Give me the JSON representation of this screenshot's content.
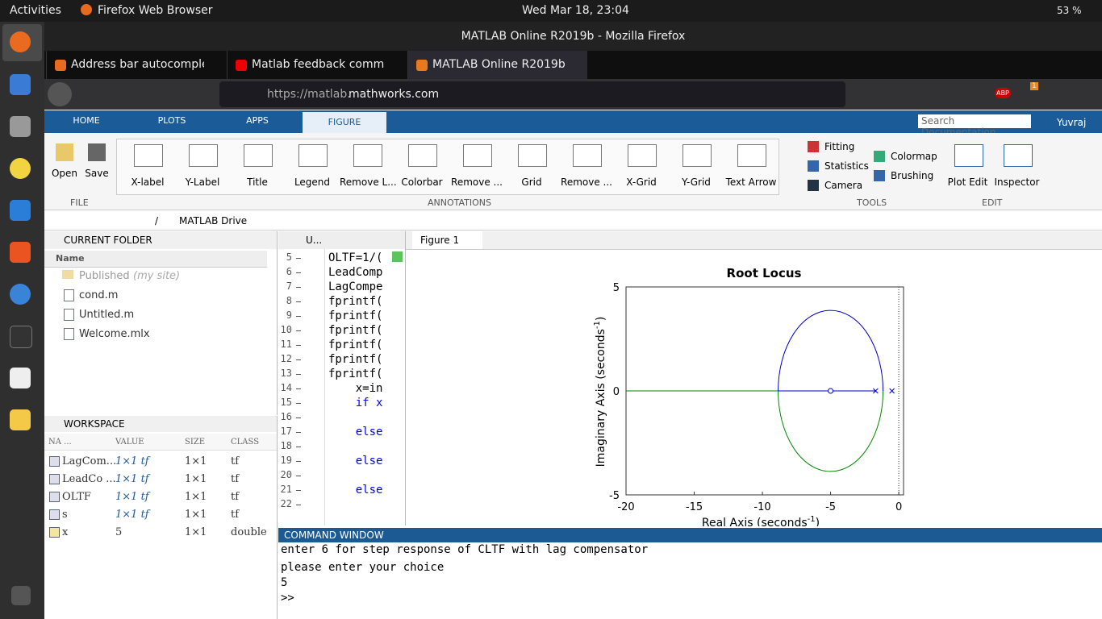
{
  "topbar": {
    "activities": "Activities",
    "app": "Firefox Web Browser",
    "clock": "Wed Mar 18, 23:04",
    "battery": "53 %"
  },
  "window_title": "MATLAB Online R2019b - Mozilla Firefox",
  "tabs": [
    "Address bar autocomple",
    "Matlab feedback comma",
    "MATLAB Online R2019b"
  ],
  "url": {
    "prefix": "https://matlab.",
    "domain": "mathworks.com"
  },
  "toolbar": {
    "abp": "ABP",
    "badge": "1"
  },
  "ribbon": {
    "tabs": [
      "HOME",
      "PLOTS",
      "APPS",
      "FIGURE"
    ],
    "search": "Search Documentation",
    "user": "Yuvraj"
  },
  "file_group": {
    "buttons": [
      "Open",
      "Save"
    ],
    "label": "FILE"
  },
  "annotations": {
    "buttons": [
      "X-label",
      "Y-Label",
      "Title",
      "Legend",
      "Remove L...",
      "Colorbar",
      "Remove ...",
      "Grid",
      "Remove ...",
      "X-Grid",
      "Y-Grid",
      "Text Arrow"
    ],
    "label": "ANNOTATIONS"
  },
  "tools": {
    "left": [
      "Fitting",
      "Statistics",
      "Camera"
    ],
    "right": [
      "Colormap",
      "Brushing"
    ],
    "label": "TOOLS"
  },
  "edit": {
    "buttons": [
      "Plot Edit",
      "Inspector"
    ],
    "label": "EDIT"
  },
  "breadcrumb": {
    "root": "/",
    "folder": "MATLAB Drive"
  },
  "current_folder": {
    "title": "CURRENT FOLDER",
    "column": "Name",
    "published": "Published",
    "published_note": "(my site)",
    "files": [
      "cond.m",
      "Untitled.m",
      "Welcome.mlx"
    ]
  },
  "workspace": {
    "title": "WORKSPACE",
    "columns": [
      "NA ...",
      "VALUE",
      "SIZE",
      "CLASS"
    ],
    "rows": [
      [
        "LagCom...",
        "1×1 tf",
        "1×1",
        "tf"
      ],
      [
        "LeadCo ...",
        "1×1 tf",
        "1×1",
        "tf"
      ],
      [
        "OLTF",
        "1×1 tf",
        "1×1",
        "tf"
      ],
      [
        "s",
        "1×1 tf",
        "1×1",
        "tf"
      ],
      [
        "x",
        "5",
        "1×1",
        "double"
      ]
    ]
  },
  "editor": {
    "tab": "U...",
    "lines": [
      {
        "n": 5,
        "code": "OLTF=1/("
      },
      {
        "n": 6,
        "code": "LeadComp"
      },
      {
        "n": 7,
        "code": "LagCompe"
      },
      {
        "n": 8,
        "code": "fprintf("
      },
      {
        "n": 9,
        "code": "fprintf("
      },
      {
        "n": 10,
        "code": "fprintf("
      },
      {
        "n": 11,
        "code": "fprintf("
      },
      {
        "n": 12,
        "code": "fprintf("
      },
      {
        "n": 13,
        "code": "fprintf("
      },
      {
        "n": 14,
        "code": "    x=in"
      },
      {
        "n": 15,
        "code": "    if x"
      },
      {
        "n": 16
      },
      {
        "n": 17,
        "code": "    else"
      },
      {
        "n": 18
      },
      {
        "n": 19,
        "code": "    else"
      },
      {
        "n": 20
      },
      {
        "n": 21,
        "code": "    else"
      },
      {
        "n": 22
      }
    ]
  },
  "figure": {
    "tab": "Figure 1",
    "title": "Root Locus",
    "xlabel": {
      "text": "Real Axis (seconds",
      "sup": "-1",
      "end": ")"
    },
    "ylabel": {
      "text": "Imaginary Axis (seconds",
      "sup": "-1",
      "end": ")"
    },
    "xlim": [
      -20,
      0.35
    ],
    "ylim": [
      -5,
      5
    ],
    "xticks": [
      -20,
      -15,
      -10,
      -5,
      0
    ],
    "yticks": [
      -5,
      0,
      5
    ],
    "poles": [
      -1.7,
      -0.5
    ],
    "zeros": [
      -5
    ]
  },
  "command_window": {
    "title": "COMMAND WINDOW",
    "lines": [
      "enter 6 for step response of CLTF with lag compensator",
      "please enter your choice",
      "5",
      ">>"
    ]
  }
}
